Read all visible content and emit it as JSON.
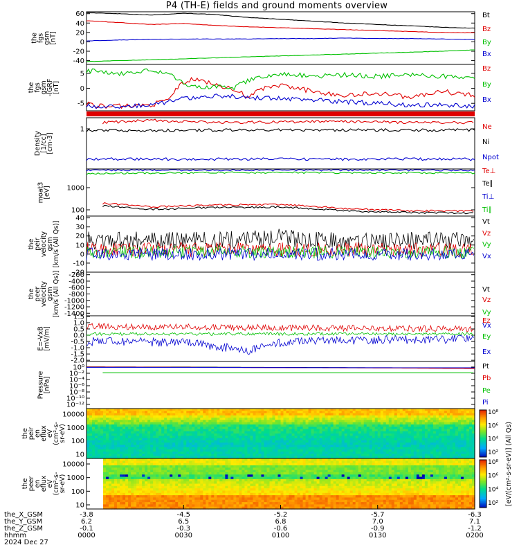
{
  "title": "P4 (TH-E) fields and ground moments overview",
  "colors": {
    "black": "#000000",
    "red": "#e00000",
    "green": "#00c000",
    "blue": "#0000d0"
  },
  "chart_data": [
    {
      "type": "line",
      "panel": "fgs",
      "ylabel": [
        "the",
        "fgs",
        "gsm",
        "[nT]"
      ],
      "yticks": [
        "60",
        "40",
        "20",
        "0",
        "-20",
        "-40"
      ],
      "ylim": [
        -48,
        64
      ],
      "series": [
        {
          "name": "Bt",
          "color": "black",
          "x": [
            0,
            10,
            20,
            30,
            40,
            50,
            60,
            70,
            80,
            90,
            100,
            110,
            120
          ],
          "y": [
            62,
            60,
            57,
            61,
            58,
            52,
            48,
            44,
            40,
            37,
            34,
            31,
            29
          ]
        },
        {
          "name": "Bz",
          "color": "red",
          "x": [
            0,
            10,
            20,
            30,
            40,
            50,
            60,
            70,
            80,
            90,
            100,
            110,
            120
          ],
          "y": [
            45,
            41,
            37,
            39,
            35,
            32,
            30,
            28,
            26,
            24,
            22,
            20,
            19
          ]
        },
        {
          "name": "By",
          "color": "green",
          "x": [
            0,
            10,
            20,
            30,
            40,
            50,
            60,
            70,
            80,
            90,
            100,
            110,
            120
          ],
          "y": [
            -42,
            -40,
            -38,
            -36,
            -34,
            -32,
            -30,
            -28,
            -26,
            -24,
            -22,
            -20,
            -17
          ]
        },
        {
          "name": "Bx",
          "color": "blue",
          "x": [
            0,
            10,
            20,
            30,
            40,
            50,
            60,
            70,
            80,
            90,
            100,
            110,
            120
          ],
          "y": [
            2,
            4,
            5,
            6,
            6,
            6,
            7,
            7,
            8,
            7,
            7,
            6,
            5
          ]
        }
      ]
    },
    {
      "type": "line",
      "panel": "fgs-dsl",
      "ylabel": [
        "the",
        "fgs",
        "gsm",
        "-IGRF",
        "[nT]"
      ],
      "yticks": [
        "5",
        "0",
        "-5"
      ],
      "ylim": [
        -7.5,
        8
      ],
      "series": [
        {
          "name": "Bz",
          "color": "red",
          "x": [
            0,
            5,
            10,
            20,
            25,
            28,
            30,
            33,
            40,
            50,
            55,
            60,
            70,
            80,
            90,
            100,
            110,
            120
          ],
          "y": [
            -5,
            -6,
            -6,
            -5.5,
            -4,
            0,
            2,
            3,
            1.5,
            -2.5,
            0,
            1,
            -1,
            -2.5,
            -1.5,
            -3,
            -1,
            -2.5
          ]
        },
        {
          "name": "By",
          "color": "green",
          "x": [
            0,
            10,
            20,
            25,
            28,
            30,
            35,
            40,
            45,
            50,
            60,
            70,
            80,
            90,
            100,
            110,
            120
          ],
          "y": [
            6,
            5,
            6,
            5,
            3,
            1.5,
            0.5,
            0.5,
            0,
            2.5,
            5,
            4,
            4.5,
            4,
            4.5,
            4,
            4
          ]
        },
        {
          "name": "Bx",
          "color": "blue",
          "x": [
            0,
            5,
            10,
            20,
            28,
            32,
            40,
            50,
            60,
            70,
            80,
            90,
            100,
            110,
            120
          ],
          "y": [
            -5.5,
            -6.5,
            -6,
            -5.5,
            -4,
            -3,
            -2.5,
            -3,
            -3.5,
            -4,
            -4.5,
            -5,
            -5.5,
            -5.5,
            -6
          ]
        }
      ]
    },
    {
      "type": "line",
      "panel": "density",
      "ylabel": [
        "Density",
        "[1/cc]",
        "[cm-3]"
      ],
      "yticks": [
        "1"
      ],
      "log": true,
      "series": [
        {
          "name": "Ne",
          "color": "red",
          "x": [
            5,
            20,
            40,
            60,
            80,
            100,
            120
          ],
          "y": [
            1.3,
            1.5,
            1.3,
            1.35,
            1.4,
            1.3,
            1.3
          ]
        },
        {
          "name": "Ni",
          "color": "black",
          "x": [
            0,
            20,
            40,
            60,
            80,
            100,
            120
          ],
          "y": [
            0.78,
            0.78,
            0.8,
            0.8,
            0.8,
            0.8,
            0.8
          ]
        },
        {
          "name": "Npot",
          "color": "blue",
          "x": [
            0,
            20,
            40,
            60,
            80,
            100,
            120
          ],
          "y": [
            0.12,
            0.12,
            0.12,
            0.12,
            0.12,
            0.12,
            0.12
          ]
        }
      ]
    },
    {
      "type": "line",
      "panel": "temperature",
      "ylabel": [
        "moat3",
        "[eV]"
      ],
      "yticks": [
        "1000",
        "100"
      ],
      "log": true,
      "ylim": [
        70,
        9000
      ],
      "series": [
        {
          "name": "Te⊥",
          "color": "red",
          "x": [
            5,
            20,
            40,
            60,
            80,
            100,
            120
          ],
          "y": [
            260,
            180,
            220,
            230,
            150,
            120,
            120
          ]
        },
        {
          "name": "Te∥",
          "color": "black",
          "x": [
            5,
            20,
            40,
            60,
            80,
            100,
            120
          ],
          "y": [
            200,
            140,
            170,
            180,
            120,
            100,
            95
          ]
        },
        {
          "name": "Ti⊥",
          "color": "blue",
          "x": [
            0,
            20,
            40,
            60,
            80,
            100,
            120
          ],
          "y": [
            8000,
            8000,
            8000,
            8000,
            8000,
            8000,
            8000
          ]
        },
        {
          "name": "Ti∥",
          "color": "green",
          "x": [
            0,
            20,
            40,
            60,
            80,
            100,
            120
          ],
          "y": [
            5500,
            6000,
            6200,
            6200,
            6100,
            6000,
            6000
          ]
        }
      ]
    },
    {
      "type": "line",
      "panel": "peir-velocity",
      "ylabel": [
        "the",
        "peir",
        "velocity",
        "gsm",
        "[km/s (All Qs)]"
      ],
      "yticks": [
        "40",
        "30",
        "20",
        "10",
        "0",
        "-10",
        "-20"
      ],
      "ylim": [
        -20,
        42
      ],
      "series": [
        {
          "name": "Vt",
          "color": "black",
          "noise": 10,
          "x": [
            0,
            40,
            60,
            80,
            120
          ],
          "y": [
            15,
            15,
            18,
            14,
            15
          ]
        },
        {
          "name": "Vz",
          "color": "red",
          "noise": 8,
          "x": [
            0,
            60,
            120
          ],
          "y": [
            5,
            5,
            5
          ]
        },
        {
          "name": "Vy",
          "color": "green",
          "noise": 7,
          "x": [
            0,
            60,
            120
          ],
          "y": [
            2,
            2,
            2
          ]
        },
        {
          "name": "Vx",
          "color": "blue",
          "noise": 7,
          "x": [
            0,
            60,
            120
          ],
          "y": [
            0,
            0,
            0
          ]
        }
      ]
    },
    {
      "type": "line",
      "panel": "peer-velocity",
      "ylabel": [
        "the",
        "peer",
        "velocity",
        "gsm",
        "[km/s (All Qs)]"
      ],
      "yticks": [
        "-200",
        "-400",
        "-600",
        "-800",
        "-1000",
        "-1200",
        "-1400"
      ],
      "ylim": [
        -1480,
        -120
      ],
      "series": [
        {
          "name": "Vt"
        },
        {
          "name": "Vz"
        },
        {
          "name": "Vy"
        },
        {
          "name": "Vx"
        }
      ]
    },
    {
      "type": "line",
      "panel": "efield",
      "ylabel": [
        "E=-VxB",
        "[mV/m]"
      ],
      "yticks": [
        "1.5",
        "1.0",
        "0.5",
        "0.0",
        "-0.5",
        "-1.0",
        "-1.5",
        "-2.0"
      ],
      "ylim": [
        -2.1,
        1.55
      ],
      "series": [
        {
          "name": "Ez",
          "color": "red",
          "noise": 0.25,
          "x": [
            0,
            60,
            120
          ],
          "y": [
            0.7,
            0.6,
            0.5
          ]
        },
        {
          "name": "Ey",
          "color": "green",
          "noise": 0.12,
          "x": [
            0,
            60,
            120
          ],
          "y": [
            0.1,
            0.1,
            0.1
          ]
        },
        {
          "name": "Ex",
          "color": "blue",
          "noise": 0.35,
          "x": [
            0,
            30,
            50,
            60,
            80,
            120
          ],
          "y": [
            -0.5,
            -0.6,
            -1.2,
            -0.6,
            -0.4,
            -0.3
          ]
        }
      ]
    },
    {
      "type": "line",
      "panel": "pressure",
      "ylabel": [
        "Pressure",
        "[nPa]"
      ],
      "yticks": [
        "10⁰",
        "10⁻²",
        "10⁻⁴",
        "10⁻⁶",
        "10⁻⁸",
        "10⁻¹⁰",
        "10⁻¹²"
      ],
      "series": [
        {
          "name": "Pt",
          "color": "black",
          "x": [
            0,
            120
          ],
          "y": [
            0.4,
            0.15
          ]
        },
        {
          "name": "Pb",
          "color": "red",
          "x": [
            0,
            120
          ],
          "y": [
            0.35,
            0.12
          ]
        },
        {
          "name": "Pe",
          "color": "green",
          "x": [
            5,
            120
          ],
          "y": [
            0.005,
            0.005
          ]
        },
        {
          "name": "Pi",
          "color": "blue",
          "x": [
            0,
            120
          ],
          "y": [
            0.3,
            0.2
          ]
        }
      ]
    },
    {
      "type": "heatmap",
      "panel": "peir-spectrogram",
      "ylabel": [
        "the",
        "peir",
        "en",
        "eflux",
        "eV",
        "(cm²-s-",
        "sr-eV)"
      ],
      "yticks": [
        "10000",
        "1000",
        "100",
        "10"
      ],
      "colorbar": {
        "label": "[eV/(cm²-s-sr-eV)] (All Qs)",
        "ticks": [
          "10⁸",
          "10⁶",
          "10⁴",
          "10²"
        ]
      }
    },
    {
      "type": "heatmap",
      "panel": "peer-spectrogram",
      "ylabel": [
        "the",
        "peer",
        "en",
        "eflux",
        "eV",
        "(cm²-s-",
        "sr-eV)"
      ],
      "yticks": [
        "10000",
        "1000",
        "100",
        "10"
      ],
      "colorbar": {
        "label": "[eV/(cm²-s-sr-eV)]",
        "ticks": [
          "10⁸",
          "10⁶",
          "10⁴",
          "10²"
        ]
      }
    }
  ],
  "xaxis": {
    "rows": [
      {
        "label": "the_X_GSM",
        "values": [
          "-3.8",
          "-4.5",
          "-5.2",
          "-5.7",
          "-6.3"
        ]
      },
      {
        "label": "the_Y_GSM",
        "values": [
          "6.2",
          "6.5",
          "6.8",
          "7.0",
          "7.1"
        ]
      },
      {
        "label": "the_Z_GSM",
        "values": [
          "-0.1",
          "-0.3",
          "-0.6",
          "-0.9",
          "-1.2"
        ]
      },
      {
        "label": "hhmm",
        "values": [
          "0000",
          "0030",
          "0100",
          "0130",
          "0200"
        ]
      }
    ],
    "date": "2024 Dec 27",
    "minutes": [
      0,
      30,
      60,
      90,
      120
    ]
  }
}
